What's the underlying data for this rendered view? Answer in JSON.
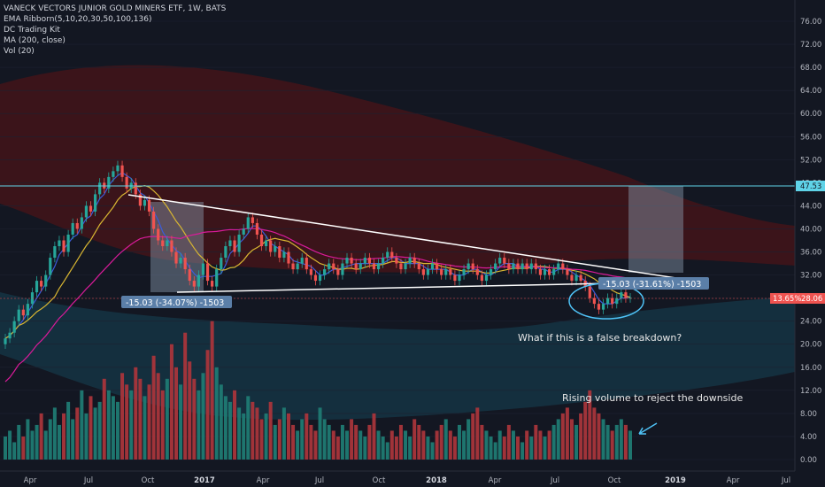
{
  "legend": {
    "title": "VANECK VECTORS JUNIOR GOLD MINERS ETF, 1W, BATS",
    "indicators": [
      "EMA Ribborn(5,10,20,30,50,100,136)",
      "DC Trading Kit",
      "MA (200, close)",
      "Vol (20)"
    ]
  },
  "colors": {
    "background": "#131722",
    "up": "#26a69a",
    "down": "#ef5350",
    "vol_up": "#1f7a73",
    "vol_down": "#a8353b",
    "ma200": "#d81b99",
    "yellow_line": "#d8b632",
    "blue_line": "#3b5bdb",
    "resistance": "#5fd3e8",
    "annotation": "#4fc3f7",
    "box": "#8a9bb0"
  },
  "annotations": {
    "measure_left": "-15.03 (-34.07%) -1503",
    "measure_right": "-15.03 (-31.61%) -1503",
    "question": "What if this is a false breakdown?",
    "volume_note": "Rising volume to reject the downside",
    "badge_resistance": "47.53",
    "badge_last_pct": "13.65%",
    "badge_last_price": "28.06"
  },
  "chart_data": {
    "type": "candlestick",
    "title": "VANECK VECTORS JUNIOR GOLD MINERS ETF, 1W, BATS",
    "price_axis": {
      "ticks": [
        "76.00",
        "72.00",
        "68.00",
        "64.00",
        "60.00",
        "56.00",
        "52.00",
        "48.00",
        "44.00",
        "40.00",
        "36.00",
        "32.00",
        "28.00",
        "24.00",
        "20.00",
        "16.00",
        "12.00",
        "8.00",
        "4.00",
        "0.00"
      ]
    },
    "time_axis": {
      "labels": [
        "Apr",
        "Jul",
        "Oct",
        "2017",
        "Apr",
        "Jul",
        "Oct",
        "2018",
        "Apr",
        "Jul",
        "Oct",
        "2019",
        "Apr",
        "Jul"
      ]
    },
    "resistance_level": 47.53,
    "last_price": 28.06,
    "weekly_close": [
      21,
      22,
      24,
      26,
      25,
      27,
      29,
      31,
      30,
      32,
      35,
      37,
      38,
      36,
      39,
      41,
      40,
      42,
      44,
      43,
      46,
      48,
      47,
      49,
      50,
      51,
      49,
      47,
      48,
      46,
      44,
      45,
      43,
      40,
      38,
      37,
      38,
      36,
      34,
      35,
      33,
      31,
      30,
      32,
      34,
      31,
      30,
      33,
      35,
      37,
      38,
      36,
      39,
      40,
      42,
      41,
      39,
      37,
      38,
      36,
      37,
      35,
      36,
      34,
      33,
      34,
      35,
      33,
      32,
      31,
      32,
      33,
      34,
      33,
      32,
      34,
      35,
      34,
      33,
      34,
      35,
      34,
      33,
      34,
      35,
      36,
      35,
      34,
      33,
      34,
      35,
      34,
      33,
      32,
      33,
      34,
      33,
      32,
      33,
      32,
      31,
      32,
      33,
      34,
      33,
      32,
      31,
      32,
      33,
      34,
      35,
      34,
      33,
      34,
      33,
      34,
      33,
      34,
      33,
      32,
      33,
      32,
      33,
      34,
      33,
      32,
      31,
      32,
      31,
      30,
      28,
      27,
      26,
      27,
      28,
      27,
      28,
      29,
      28,
      28.06
    ],
    "weekly_volume": [
      4,
      5,
      3,
      6,
      4,
      7,
      5,
      6,
      8,
      5,
      7,
      9,
      6,
      8,
      10,
      7,
      9,
      12,
      8,
      11,
      9,
      10,
      14,
      12,
      11,
      10,
      15,
      13,
      12,
      16,
      14,
      11,
      13,
      18,
      15,
      12,
      14,
      20,
      16,
      13,
      22,
      17,
      14,
      12,
      15,
      19,
      24,
      16,
      13,
      11,
      10,
      12,
      9,
      8,
      11,
      10,
      9,
      7,
      8,
      10,
      6,
      7,
      9,
      8,
      6,
      5,
      7,
      8,
      6,
      5,
      9,
      7,
      6,
      5,
      4,
      6,
      5,
      7,
      6,
      5,
      4,
      6,
      8,
      5,
      4,
      3,
      5,
      4,
      6,
      5,
      4,
      7,
      6,
      5,
      4,
      3,
      5,
      6,
      7,
      5,
      4,
      6,
      5,
      7,
      8,
      9,
      6,
      5,
      4,
      3,
      5,
      4,
      6,
      5,
      4,
      3,
      5,
      4,
      6,
      5,
      4,
      5,
      6,
      7,
      8,
      9,
      7,
      6,
      8,
      10,
      12,
      9,
      8,
      7,
      6,
      5,
      6,
      7,
      6,
      5
    ]
  }
}
